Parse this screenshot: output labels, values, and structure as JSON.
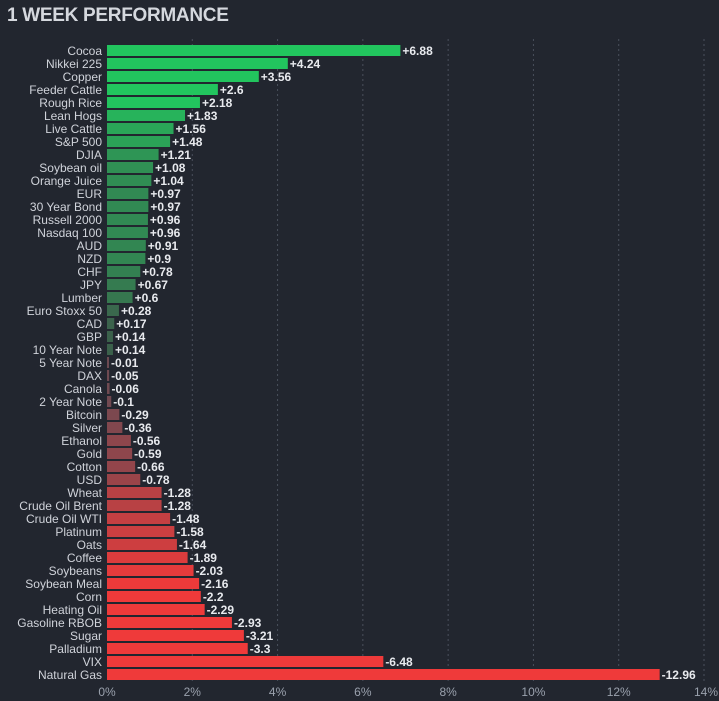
{
  "page": {
    "title": "1 WEEK PERFORMANCE"
  },
  "chart_data": {
    "type": "bar",
    "orientation": "horizontal",
    "title": "1 WEEK PERFORMANCE",
    "xlabel": "",
    "ylabel": "",
    "xlim": [
      0,
      14
    ],
    "x_ticks": [
      "0%",
      "2%",
      "4%",
      "6%",
      "8%",
      "10%",
      "12%",
      "14%"
    ],
    "grid": true,
    "colors": {
      "positive_strong": "#22c55e",
      "positive_weak": "#3d5a4a",
      "negative_weak": "#6b4a52",
      "negative_strong": "#ef3a3a"
    },
    "categories": [
      "Cocoa",
      "Nikkei 225",
      "Copper",
      "Feeder Cattle",
      "Rough Rice",
      "Lean Hogs",
      "Live Cattle",
      "S&P 500",
      "DJIA",
      "Soybean oil",
      "Orange Juice",
      "EUR",
      "30 Year Bond",
      "Russell 2000",
      "Nasdaq 100",
      "AUD",
      "NZD",
      "CHF",
      "JPY",
      "Lumber",
      "Euro Stoxx 50",
      "CAD",
      "GBP",
      "10 Year Note",
      "5 Year Note",
      "DAX",
      "Canola",
      "2 Year Note",
      "Bitcoin",
      "Silver",
      "Ethanol",
      "Gold",
      "Cotton",
      "USD",
      "Wheat",
      "Crude Oil Brent",
      "Crude Oil WTI",
      "Platinum",
      "Oats",
      "Coffee",
      "Soybeans",
      "Soybean Meal",
      "Corn",
      "Heating Oil",
      "Gasoline RBOB",
      "Sugar",
      "Palladium",
      "VIX",
      "Natural Gas"
    ],
    "values": [
      6.88,
      4.24,
      3.56,
      2.6,
      2.18,
      1.83,
      1.56,
      1.48,
      1.21,
      1.08,
      1.04,
      0.97,
      0.97,
      0.96,
      0.96,
      0.91,
      0.9,
      0.78,
      0.67,
      0.6,
      0.28,
      0.17,
      0.14,
      0.14,
      -0.01,
      -0.05,
      -0.06,
      -0.1,
      -0.29,
      -0.36,
      -0.56,
      -0.59,
      -0.66,
      -0.78,
      -1.28,
      -1.28,
      -1.48,
      -1.58,
      -1.64,
      -1.89,
      -2.03,
      -2.16,
      -2.2,
      -2.29,
      -2.93,
      -3.21,
      -3.3,
      -6.48,
      -12.96
    ],
    "value_labels": [
      "+6.88",
      "+4.24",
      "+3.56",
      "+2.6",
      "+2.18",
      "+1.83",
      "+1.56",
      "+1.48",
      "+1.21",
      "+1.08",
      "+1.04",
      "+0.97",
      "+0.97",
      "+0.96",
      "+0.96",
      "+0.91",
      "+0.9",
      "+0.78",
      "+0.67",
      "+0.6",
      "+0.28",
      "+0.17",
      "+0.14",
      "+0.14",
      "-0.01",
      "-0.05",
      "-0.06",
      "-0.1",
      "-0.29",
      "-0.36",
      "-0.56",
      "-0.59",
      "-0.66",
      "-0.78",
      "-1.28",
      "-1.28",
      "-1.48",
      "-1.58",
      "-1.64",
      "-1.89",
      "-2.03",
      "-2.16",
      "-2.2",
      "-2.29",
      "-2.93",
      "-3.21",
      "-3.3",
      "-6.48",
      "-12.96"
    ]
  }
}
